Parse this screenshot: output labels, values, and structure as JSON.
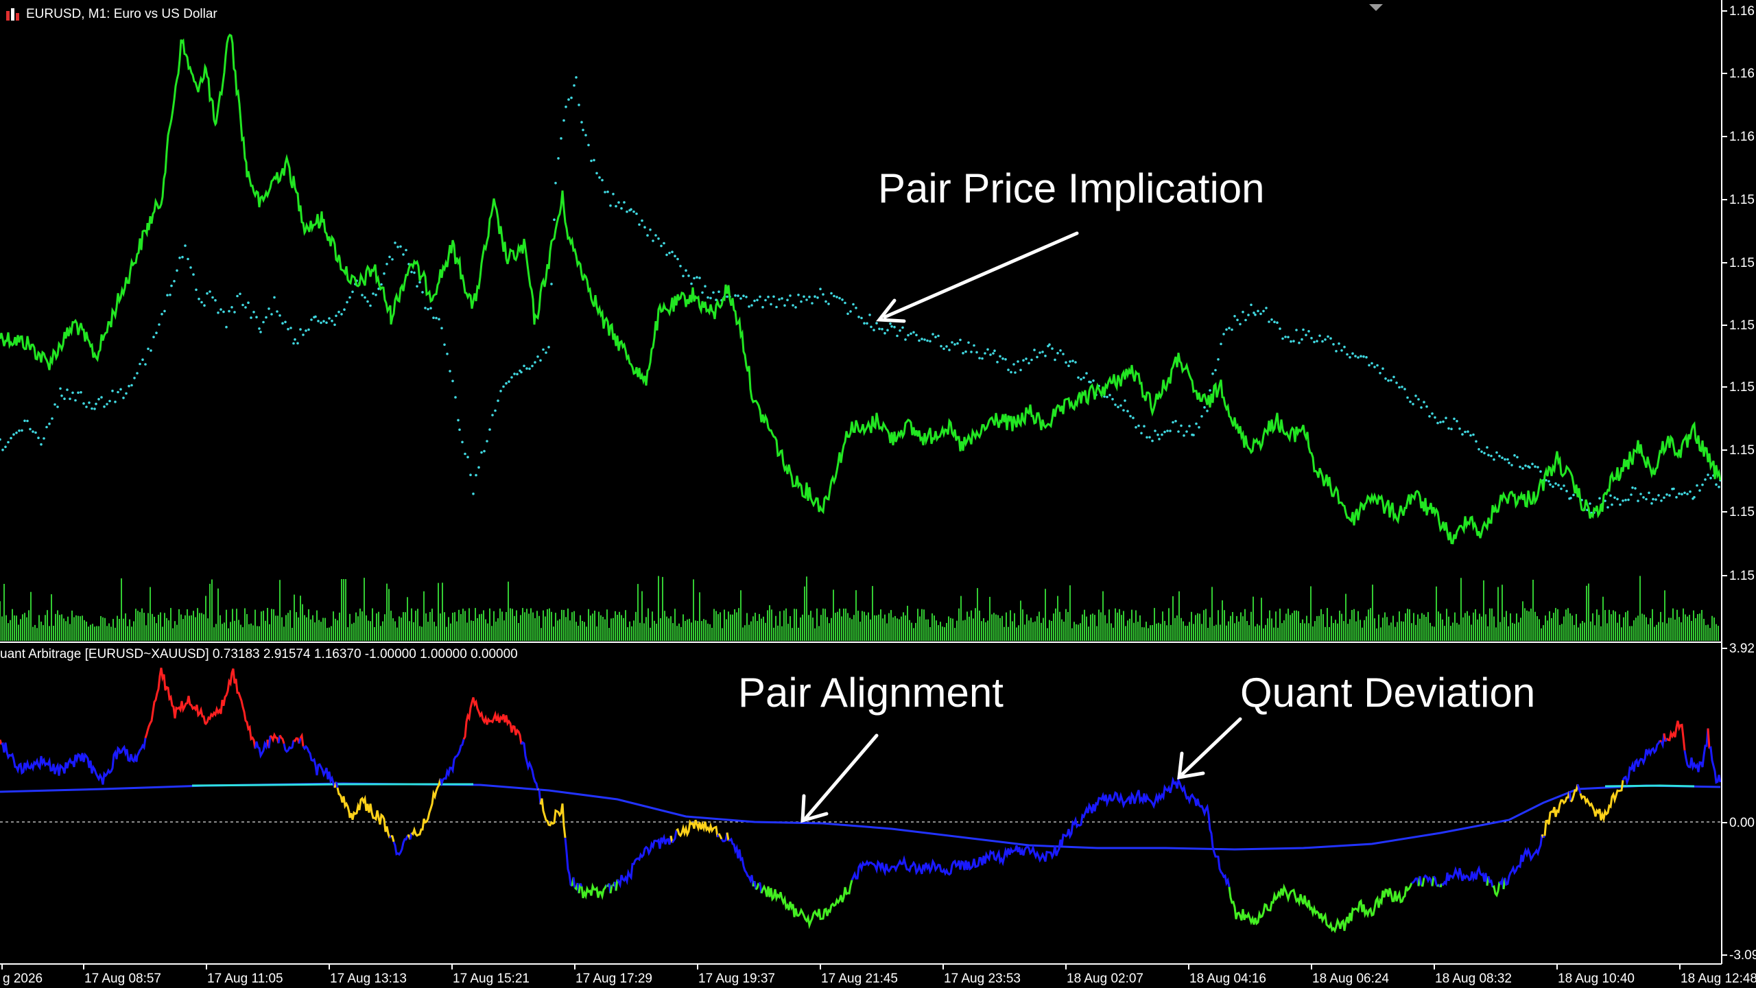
{
  "window": {
    "symbol_title": "EURUSD, M1:  Euro vs US Dollar"
  },
  "price_axis_labels": [
    "1.16",
    "1.16",
    "1.16",
    "1.15",
    "1.15",
    "1.15",
    "1.15",
    "1.15",
    "1.15",
    "1.15"
  ],
  "indicator": {
    "title": "uant Arbitrage [EURUSD~XAUUSD] 0.73183 2.91574 1.16370 -1.00000 1.00000 0.00000",
    "axis_labels": [
      "3.92",
      "0.00",
      "-3.09"
    ]
  },
  "time_axis_labels": [
    "g 2026",
    "17 Aug 08:57",
    "17 Aug 11:05",
    "17 Aug 13:13",
    "17 Aug 15:21",
    "17 Aug 17:29",
    "17 Aug 19:37",
    "17 Aug 21:45",
    "17 Aug 23:53",
    "18 Aug 02:07",
    "18 Aug 04:16",
    "18 Aug 06:24",
    "18 Aug 08:32",
    "18 Aug 10:40",
    "18 Aug 12:48"
  ],
  "annotations": {
    "pair_price_implication": "Pair Price Implication",
    "pair_alignment": "Pair Alignment",
    "quant_deviation": "Quant Deviation"
  },
  "colors": {
    "background": "#000000",
    "price_line": "#22e622",
    "implied_price_dots": "#40d8e0",
    "volume": "#33cc33",
    "deviation_blue": "#1a1aff",
    "deviation_red": "#ff2020",
    "deviation_yellow": "#ffd21a",
    "deviation_green": "#44ee22",
    "alignment_line": "#2233ff",
    "alignment_cyan": "#30e0e0",
    "axis": "#ffffff"
  }
}
